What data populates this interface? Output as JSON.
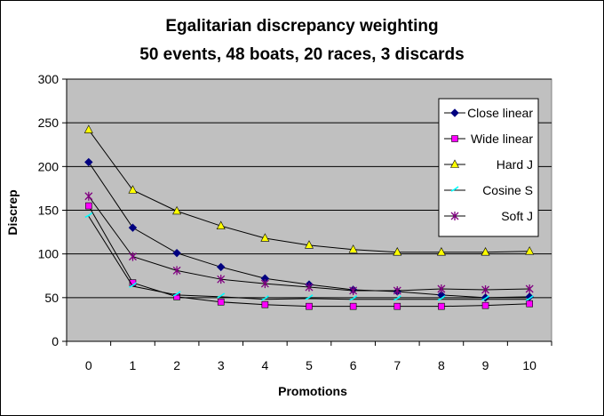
{
  "chart_data": {
    "type": "line",
    "title": "Egalitarian discrepancy weighting",
    "subtitle": "50 events, 48 boats, 20 races, 3 discards",
    "xlabel": "Promotions",
    "ylabel": "Discrep",
    "x": [
      0,
      1,
      2,
      3,
      4,
      5,
      6,
      7,
      8,
      9,
      10
    ],
    "ylim": [
      0,
      300
    ],
    "yticks": [
      0,
      50,
      100,
      150,
      200,
      250,
      300
    ],
    "grid": true,
    "legend_position": "top-right",
    "plot_background": "#c0c0c0",
    "series": [
      {
        "name": "Close linear",
        "color": "#000080",
        "marker": "diamond",
        "values": [
          205,
          130,
          101,
          85,
          72,
          65,
          59,
          57,
          53,
          50,
          51
        ]
      },
      {
        "name": "Wide linear",
        "color": "#ff00ff",
        "marker": "square",
        "values": [
          155,
          67,
          51,
          45,
          42,
          40,
          40,
          40,
          40,
          41,
          43
        ]
      },
      {
        "name": "Hard J",
        "color": "#ffff00",
        "marker": "triangle",
        "values": [
          242,
          173,
          149,
          132,
          118,
          110,
          105,
          102,
          102,
          102,
          103
        ]
      },
      {
        "name": "Cosine S",
        "color": "#00ffff",
        "marker": "tick",
        "values": [
          143,
          63,
          53,
          51,
          48,
          49,
          48,
          48,
          48,
          48,
          48
        ]
      },
      {
        "name": "Soft J",
        "color": "#800080",
        "marker": "star",
        "values": [
          166,
          97,
          81,
          71,
          66,
          62,
          58,
          58,
          60,
          59,
          60
        ]
      }
    ]
  }
}
